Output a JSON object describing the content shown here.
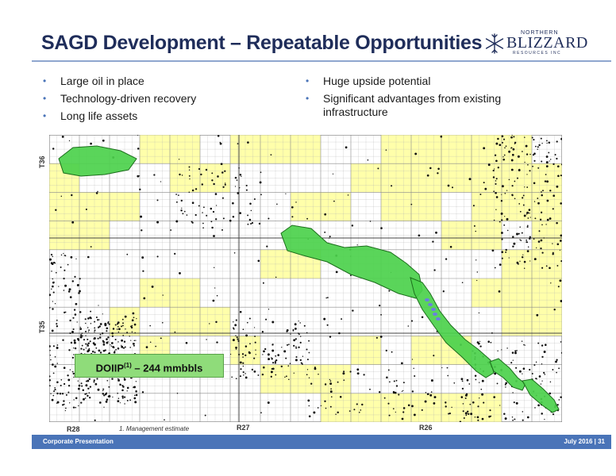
{
  "header": {
    "title": "SAGD Development – Repeatable Opportunities",
    "logo": {
      "top_text": "NORTHERN",
      "main_text": "BLIZZARD",
      "sub_text": "RESOURCES INC",
      "icon": "snowflake-icon"
    }
  },
  "bullets_left": [
    "Large oil in place",
    "Technology-driven recovery",
    "Long life assets"
  ],
  "bullets_right": [
    "Huge upside potential",
    "Significant advantages from existing infrastructure"
  ],
  "map": {
    "township_labels": [
      "T36",
      "T35"
    ],
    "range_labels": [
      "R28",
      "R27",
      "R26"
    ],
    "footnote": "1. Management estimate",
    "callout": {
      "prefix": "DOIIP",
      "superscript": "(1)",
      "suffix": " – 244 mmbbls"
    },
    "colors": {
      "land": "#ffffaa",
      "development": "#4cd14c",
      "outline": "#1c6e1c",
      "grid": "#b0b0b0",
      "dot": "#111111"
    }
  },
  "footer": {
    "left": "Corporate Presentation",
    "right": "July 2016 | 31"
  }
}
